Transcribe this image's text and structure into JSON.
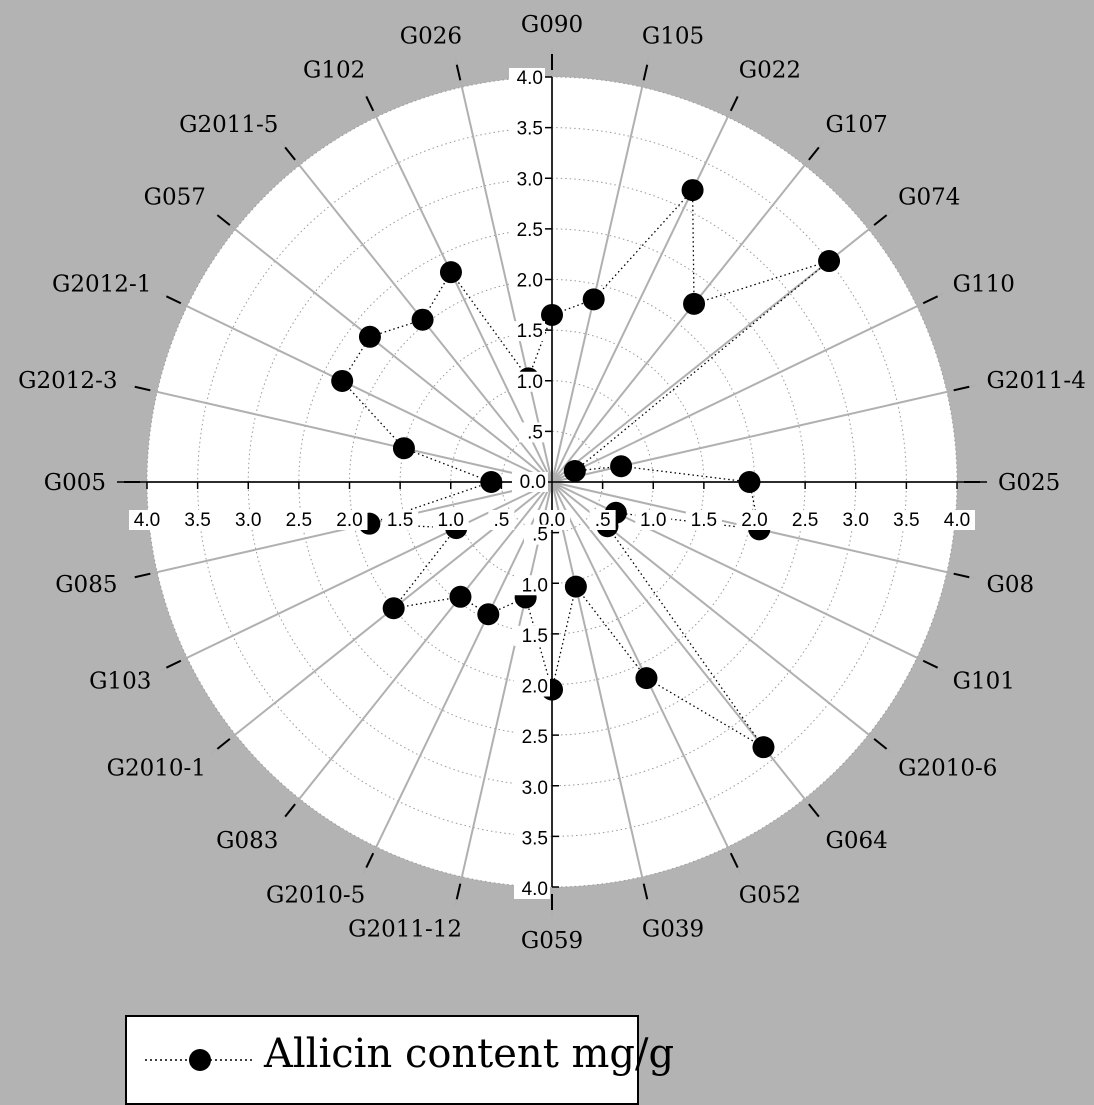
{
  "chart_data": {
    "type": "radar",
    "categories": [
      "G090",
      "G105",
      "G022",
      "G107",
      "G074",
      "G110",
      "G2011-4",
      "G025",
      "G08",
      "G101",
      "G2010-6",
      "G064",
      "G052",
      "G039",
      "G059",
      "G2011-12",
      "G2010-5",
      "G083",
      "G2010-1",
      "G103",
      "G085",
      "G005",
      "G2012-3",
      "G2012-1",
      "G057",
      "G2011-5",
      "G102",
      "G026"
    ],
    "series": [
      {
        "name": "Allicin content mg/g",
        "values": [
          1.65,
          1.85,
          3.2,
          2.25,
          3.5,
          0.25,
          0.7,
          1.95,
          2.1,
          0.7,
          0.7,
          3.35,
          2.15,
          1.06,
          2.05,
          1.17,
          1.45,
          1.45,
          2.0,
          1.05,
          1.85,
          0.6,
          1.5,
          2.3,
          2.3,
          2.05,
          2.3,
          1.05
        ],
        "color": "#000000"
      }
    ],
    "rlim": [
      0,
      4.0
    ],
    "radial_ticks": [
      "0.0",
      ".5",
      "1.0",
      "1.5",
      "2.0",
      "2.5",
      "3.0",
      "3.5",
      "4.0"
    ],
    "grid": true,
    "legend_position": "bottom-left"
  }
}
